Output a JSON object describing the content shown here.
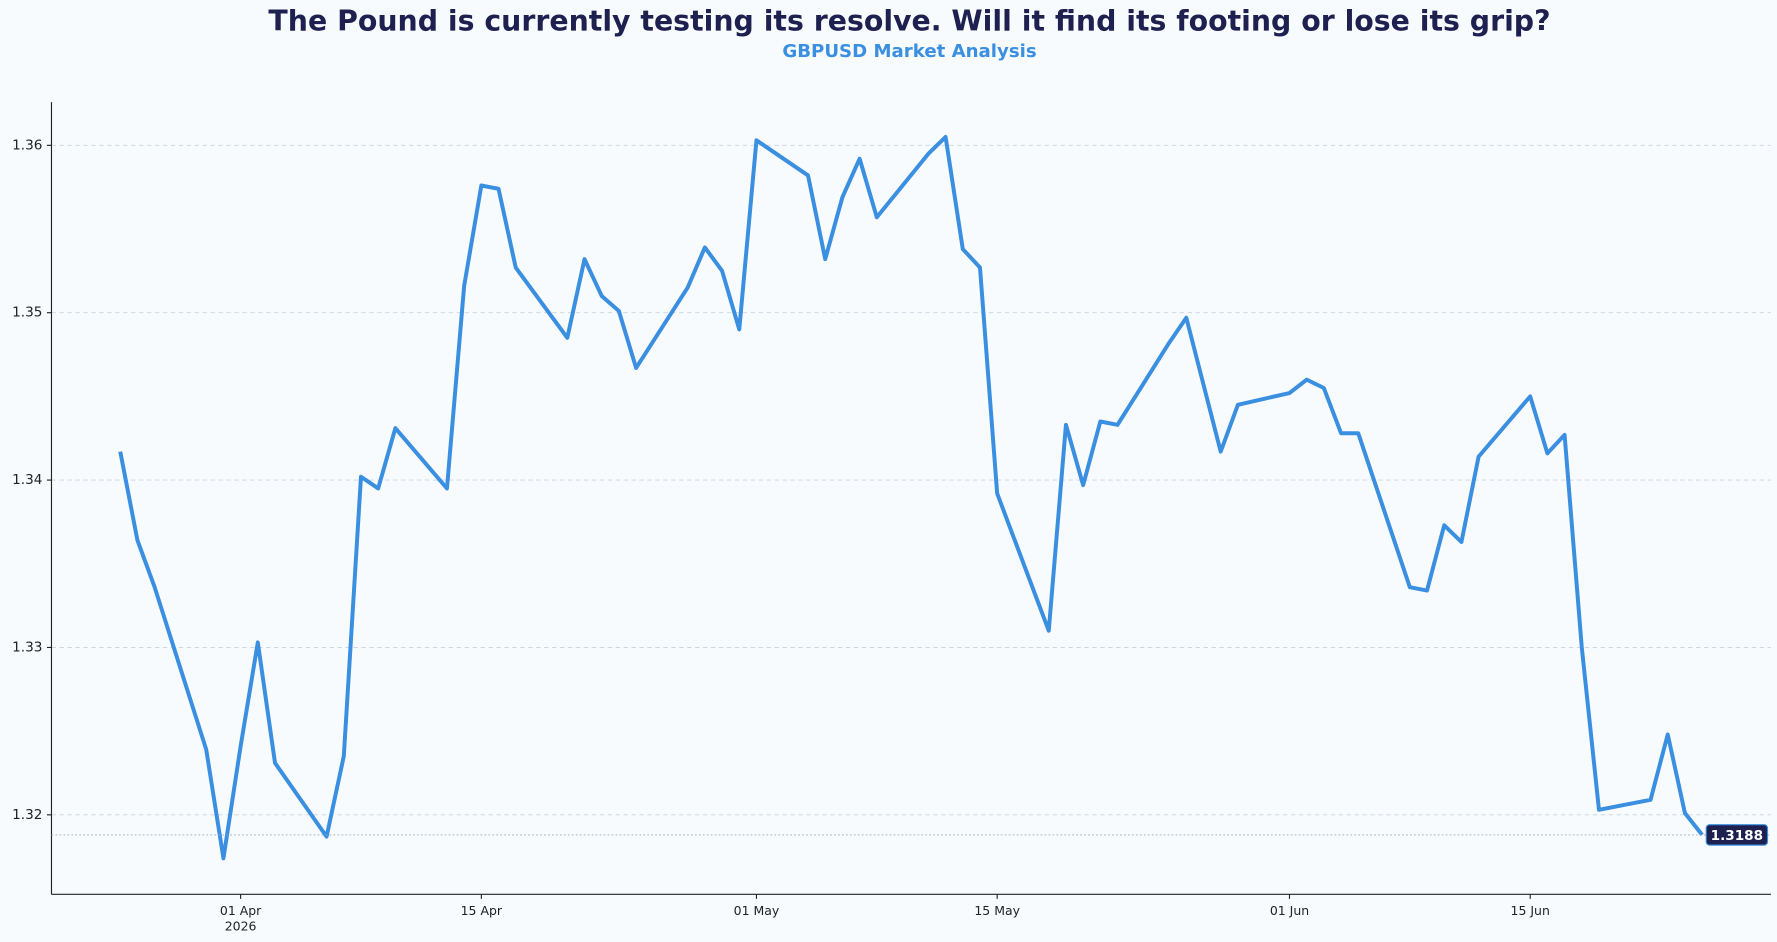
{
  "chart_data": {
    "type": "line",
    "title": "The Pound is currently testing its resolve. Will it find its footing or lose its grip?",
    "subtitle": "GBPUSD Market Analysis",
    "x": [
      "2026-03-25",
      "2026-03-26",
      "2026-03-27",
      "2026-03-30",
      "2026-03-31",
      "2026-04-01",
      "2026-04-02",
      "2026-04-03",
      "2026-04-06",
      "2026-04-07",
      "2026-04-08",
      "2026-04-09",
      "2026-04-10",
      "2026-04-13",
      "2026-04-14",
      "2026-04-15",
      "2026-04-16",
      "2026-04-17",
      "2026-04-20",
      "2026-04-21",
      "2026-04-22",
      "2026-04-23",
      "2026-04-24",
      "2026-04-27",
      "2026-04-28",
      "2026-04-29",
      "2026-04-30",
      "2026-05-01",
      "2026-05-04",
      "2026-05-05",
      "2026-05-06",
      "2026-05-07",
      "2026-05-08",
      "2026-05-11",
      "2026-05-12",
      "2026-05-13",
      "2026-05-14",
      "2026-05-15",
      "2026-05-18",
      "2026-05-19",
      "2026-05-20",
      "2026-05-21",
      "2026-05-22",
      "2026-05-25",
      "2026-05-26",
      "2026-05-28",
      "2026-05-29",
      "2026-06-01",
      "2026-06-02",
      "2026-06-03",
      "2026-06-04",
      "2026-06-05",
      "2026-06-08",
      "2026-06-09",
      "2026-06-10",
      "2026-06-11",
      "2026-06-12",
      "2026-06-15",
      "2026-06-16",
      "2026-06-17",
      "2026-06-18",
      "2026-06-19",
      "2026-06-22",
      "2026-06-23",
      "2026-06-24",
      "2026-06-25"
    ],
    "series": [
      {
        "name": "GBPUSD",
        "color": "#3a8fe0",
        "values": [
          1.3417,
          1.3364,
          1.3336,
          1.3239,
          1.3174,
          1.3241,
          1.3303,
          1.3231,
          1.3187,
          1.3235,
          1.3402,
          1.3395,
          1.3431,
          1.3395,
          1.3516,
          1.3576,
          1.3574,
          1.3527,
          1.3485,
          1.3532,
          1.351,
          1.3501,
          1.3467,
          1.3515,
          1.3539,
          1.3525,
          1.349,
          1.3603,
          1.3582,
          1.3532,
          1.3569,
          1.3592,
          1.3557,
          1.3595,
          1.3605,
          1.3538,
          1.3527,
          1.3392,
          1.331,
          1.3433,
          1.3397,
          1.3435,
          1.3433,
          1.3482,
          1.3497,
          1.3417,
          1.3445,
          1.3452,
          1.346,
          1.3455,
          1.3428,
          1.3428,
          1.3336,
          1.3334,
          1.3373,
          1.3363,
          1.3414,
          1.345,
          1.3416,
          1.3427,
          1.33,
          1.3203,
          1.3209,
          1.3248,
          1.3201,
          1.3188
        ]
      }
    ],
    "xlim": [
      "2026-03-21",
      "2026-06-29"
    ],
    "xticks": [
      {
        "value": "2026-04-01",
        "label": "01 Apr\n2026"
      },
      {
        "value": "2026-04-15",
        "label": "15 Apr"
      },
      {
        "value": "2026-05-01",
        "label": "01 May"
      },
      {
        "value": "2026-05-15",
        "label": "15 May"
      },
      {
        "value": "2026-06-01",
        "label": "01 Jun"
      },
      {
        "value": "2026-06-15",
        "label": "15 Jun"
      }
    ],
    "ylim": [
      1.31525,
      1.36258
    ],
    "yticks": [
      {
        "value": 1.32,
        "label": "1.32"
      },
      {
        "value": 1.33,
        "label": "1.33"
      },
      {
        "value": 1.34,
        "label": "1.34"
      },
      {
        "value": 1.35,
        "label": "1.35"
      },
      {
        "value": 1.36,
        "label": "1.36"
      }
    ],
    "grid": true
  }
}
